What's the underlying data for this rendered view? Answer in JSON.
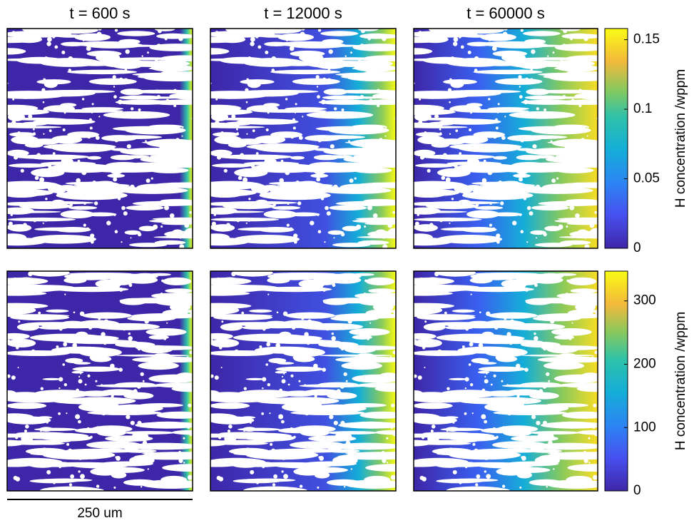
{
  "chart_data": [
    {
      "type": "colormap",
      "titles": [
        "t = 600 s",
        "t = 12000 s",
        "t = 60000 s"
      ],
      "ylabel": "H concentration /wppm",
      "ylim": [
        0,
        0.158
      ],
      "yticks": [
        0,
        0.05,
        0.1,
        0.15
      ]
    },
    {
      "type": "colormap",
      "ylabel": "H concentration /wppm",
      "ylim": [
        0,
        347
      ],
      "yticks": [
        0,
        100,
        200,
        300
      ]
    }
  ],
  "scale_bar": {
    "label": "250 um"
  }
}
